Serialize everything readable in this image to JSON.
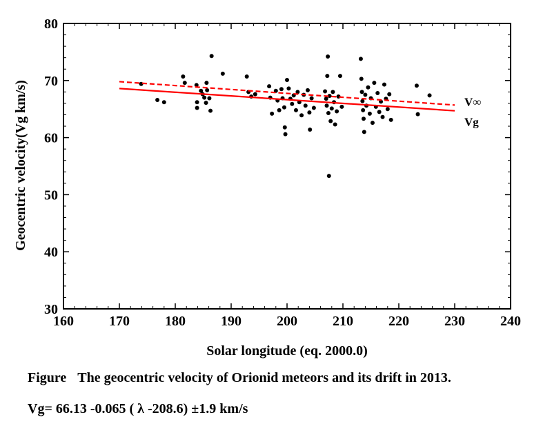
{
  "chart_data": {
    "type": "scatter",
    "title": "",
    "xlabel": "Solar longitude (eq. 2000.0)",
    "ylabel": "Geocentric velocity(Vg km/s)",
    "xlim": [
      160,
      240
    ],
    "ylim": [
      30,
      80
    ],
    "xticks": [
      160,
      170,
      180,
      190,
      200,
      210,
      220,
      230,
      240
    ],
    "yticks": [
      30,
      40,
      50,
      60,
      70,
      80
    ],
    "grid": false,
    "points": [
      [
        173.9,
        69.4
      ],
      [
        176.8,
        66.6
      ],
      [
        178,
        66.2
      ],
      [
        181.4,
        70.7
      ],
      [
        181.7,
        69.6
      ],
      [
        183.8,
        69.2
      ],
      [
        183.9,
        66.2
      ],
      [
        183.9,
        65.2
      ],
      [
        184.6,
        68.2
      ],
      [
        184.9,
        67.6
      ],
      [
        185.2,
        67.0
      ],
      [
        185.5,
        66.1
      ],
      [
        185.6,
        69.6
      ],
      [
        185.7,
        68.3
      ],
      [
        186.1,
        66.9
      ],
      [
        186.3,
        64.7
      ],
      [
        186.5,
        74.3
      ],
      [
        188.5,
        71.2
      ],
      [
        192.8,
        70.7
      ],
      [
        193.1,
        68.0
      ],
      [
        193.6,
        67.2
      ],
      [
        194.3,
        67.6
      ],
      [
        196.8,
        69.0
      ],
      [
        197.0,
        67.0
      ],
      [
        197.3,
        64.2
      ],
      [
        198.0,
        68.2
      ],
      [
        198.3,
        66.5
      ],
      [
        198.6,
        64.8
      ],
      [
        199.0,
        68.5
      ],
      [
        199.2,
        66.9
      ],
      [
        199.5,
        65.3
      ],
      [
        199.6,
        61.8
      ],
      [
        199.7,
        60.6
      ],
      [
        200.0,
        70.1
      ],
      [
        200.3,
        68.6
      ],
      [
        200.6,
        66.8
      ],
      [
        200.9,
        65.9
      ],
      [
        201.2,
        67.4
      ],
      [
        201.6,
        64.8
      ],
      [
        201.9,
        68.0
      ],
      [
        202.2,
        66.2
      ],
      [
        202.6,
        63.9
      ],
      [
        203.0,
        67.5
      ],
      [
        203.3,
        65.6
      ],
      [
        203.7,
        68.3
      ],
      [
        204.0,
        64.4
      ],
      [
        204.1,
        61.4
      ],
      [
        204.4,
        66.9
      ],
      [
        204.8,
        65.2
      ],
      [
        206.8,
        68.1
      ],
      [
        207.0,
        66.8
      ],
      [
        207.1,
        65.6
      ],
      [
        207.2,
        70.8
      ],
      [
        207.3,
        74.2
      ],
      [
        207.4,
        64.3
      ],
      [
        207.5,
        53.3
      ],
      [
        207.6,
        67.3
      ],
      [
        207.8,
        62.9
      ],
      [
        208.0,
        65.1
      ],
      [
        208.2,
        68.0
      ],
      [
        208.4,
        66.2
      ],
      [
        208.6,
        62.3
      ],
      [
        208.9,
        64.6
      ],
      [
        209.2,
        67.2
      ],
      [
        209.5,
        70.8
      ],
      [
        209.8,
        65.4
      ],
      [
        213.2,
        73.8
      ],
      [
        213.3,
        70.3
      ],
      [
        213.4,
        68.0
      ],
      [
        213.5,
        66.4
      ],
      [
        213.6,
        64.8
      ],
      [
        213.7,
        63.3
      ],
      [
        213.8,
        61.0
      ],
      [
        214.0,
        67.5
      ],
      [
        214.2,
        65.6
      ],
      [
        214.5,
        68.8
      ],
      [
        214.8,
        64.2
      ],
      [
        215.0,
        66.9
      ],
      [
        215.3,
        62.6
      ],
      [
        215.6,
        69.6
      ],
      [
        215.9,
        65.4
      ],
      [
        216.2,
        67.8
      ],
      [
        216.5,
        64.5
      ],
      [
        216.8,
        66.3
      ],
      [
        217.1,
        63.6
      ],
      [
        217.4,
        69.3
      ],
      [
        217.7,
        66.8
      ],
      [
        218.0,
        65.0
      ],
      [
        218.3,
        67.6
      ],
      [
        218.6,
        63.1
      ],
      [
        223.2,
        69.1
      ],
      [
        223.4,
        64.1
      ],
      [
        225.5,
        67.4
      ]
    ],
    "series": [
      {
        "name": "V∞",
        "type": "line",
        "style": "dashed",
        "color": "#ff0000",
        "x": [
          170,
          230
        ],
        "y": [
          69.8,
          65.7
        ]
      },
      {
        "name": "Vg",
        "type": "line",
        "style": "solid",
        "color": "#ff0000",
        "x": [
          170,
          230
        ],
        "y": [
          68.6,
          64.7
        ]
      }
    ],
    "point_color": "#000000"
  },
  "caption": {
    "figure_word": "Figure",
    "text": "The geocentric velocity of Orionid meteors and its drift in 2013.",
    "formula": "Vg= 66.13 -0.065 ( λ  -208.6) ±1.9 km/s"
  }
}
